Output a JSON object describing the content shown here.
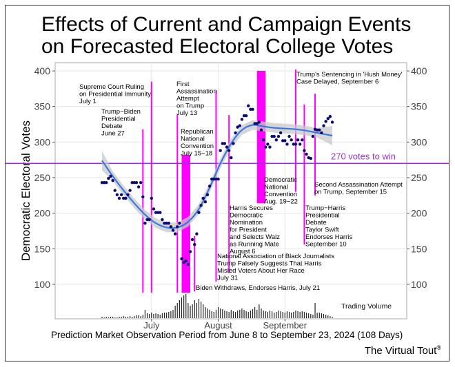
{
  "title_line1": "Effects of Current and Campaign Events",
  "title_line2": "on Forecasted Electoral College Votes",
  "xaxis_caption": "Prediction Market Observation Period from June 8 to September 23, 2024 (108 Days)",
  "brand": "The Virtual Tout",
  "brand_mark": "®",
  "colors": {
    "points": "#0a0a6e",
    "fit": "#3a78e0",
    "ribbon": "#c8c8c8",
    "events": "#ff00ff",
    "threshold": "#9933cc",
    "volume": "#222222"
  },
  "chart_data": {
    "type": "scatter",
    "ylabel": "Democratic Electoral Votes",
    "ylim": [
      75,
      405
    ],
    "yticks": [
      100,
      150,
      200,
      250,
      300,
      350,
      400
    ],
    "x_start": "2024-06-08",
    "x_end": "2024-09-23",
    "xticks": [
      {
        "date": "2024-07-01",
        "label": "July"
      },
      {
        "date": "2024-08-01",
        "label": "August"
      },
      {
        "date": "2024-09-01",
        "label": "September"
      }
    ],
    "threshold": {
      "value": 270,
      "label": "270 votes to win"
    },
    "volume_label": "Trading Volume",
    "points": [
      [
        "2024-06-08",
        243
      ],
      [
        "2024-06-09",
        243
      ],
      [
        "2024-06-10",
        243
      ],
      [
        "2024-06-11",
        249
      ],
      [
        "2024-06-12",
        252
      ],
      [
        "2024-06-13",
        246
      ],
      [
        "2024-06-14",
        232
      ],
      [
        "2024-06-15",
        226
      ],
      [
        "2024-06-16",
        221
      ],
      [
        "2024-06-17",
        226
      ],
      [
        "2024-06-18",
        221
      ],
      [
        "2024-06-19",
        221
      ],
      [
        "2024-06-20",
        226
      ],
      [
        "2024-06-21",
        232
      ],
      [
        "2024-06-22",
        243
      ],
      [
        "2024-06-23",
        243
      ],
      [
        "2024-06-24",
        243
      ],
      [
        "2024-06-25",
        237
      ],
      [
        "2024-06-26",
        243
      ],
      [
        "2024-06-27",
        223
      ],
      [
        "2024-06-28",
        186
      ],
      [
        "2024-06-29",
        191
      ],
      [
        "2024-06-30",
        191
      ],
      [
        "2024-07-01",
        221
      ],
      [
        "2024-07-02",
        206
      ],
      [
        "2024-07-03",
        201
      ],
      [
        "2024-07-04",
        201
      ],
      [
        "2024-07-05",
        201
      ],
      [
        "2024-07-06",
        191
      ],
      [
        "2024-07-07",
        186
      ],
      [
        "2024-07-08",
        186
      ],
      [
        "2024-07-09",
        186
      ],
      [
        "2024-07-10",
        181
      ],
      [
        "2024-07-11",
        176
      ],
      [
        "2024-07-12",
        171
      ],
      [
        "2024-07-13",
        181
      ],
      [
        "2024-07-14",
        186
      ],
      [
        "2024-07-15",
        136
      ],
      [
        "2024-07-16",
        131
      ],
      [
        "2024-07-17",
        133
      ],
      [
        "2024-07-18",
        128
      ],
      [
        "2024-07-19",
        146
      ],
      [
        "2024-07-20",
        163
      ],
      [
        "2024-07-21",
        156
      ],
      [
        "2024-07-22",
        171
      ],
      [
        "2024-07-23",
        201
      ],
      [
        "2024-07-24",
        211
      ],
      [
        "2024-07-25",
        221
      ],
      [
        "2024-07-26",
        216
      ],
      [
        "2024-07-27",
        226
      ],
      [
        "2024-07-28",
        238
      ],
      [
        "2024-07-29",
        248
      ],
      [
        "2024-07-30",
        248
      ],
      [
        "2024-07-31",
        248
      ],
      [
        "2024-08-01",
        248
      ],
      [
        "2024-08-02",
        288
      ],
      [
        "2024-08-03",
        298
      ],
      [
        "2024-08-04",
        298
      ],
      [
        "2024-08-05",
        293
      ],
      [
        "2024-08-06",
        288
      ],
      [
        "2024-08-07",
        278
      ],
      [
        "2024-08-08",
        298
      ],
      [
        "2024-08-09",
        313
      ],
      [
        "2024-08-10",
        321
      ],
      [
        "2024-08-11",
        323
      ],
      [
        "2024-08-12",
        332
      ],
      [
        "2024-08-13",
        337
      ],
      [
        "2024-08-14",
        337
      ],
      [
        "2024-08-15",
        351
      ],
      [
        "2024-08-16",
        346
      ],
      [
        "2024-08-17",
        346
      ],
      [
        "2024-08-18",
        326
      ],
      [
        "2024-08-19",
        326
      ],
      [
        "2024-08-20",
        328
      ],
      [
        "2024-08-21",
        317
      ],
      [
        "2024-08-22",
        303
      ],
      [
        "2024-08-23",
        293
      ],
      [
        "2024-08-24",
        297
      ],
      [
        "2024-08-25",
        293
      ],
      [
        "2024-08-26",
        308
      ],
      [
        "2024-08-27",
        308
      ],
      [
        "2024-08-28",
        303
      ],
      [
        "2024-08-29",
        308
      ],
      [
        "2024-08-30",
        313
      ],
      [
        "2024-08-31",
        302
      ],
      [
        "2024-09-01",
        302
      ],
      [
        "2024-09-02",
        297
      ],
      [
        "2024-09-03",
        308
      ],
      [
        "2024-09-04",
        303
      ],
      [
        "2024-09-05",
        297
      ],
      [
        "2024-09-06",
        297
      ],
      [
        "2024-09-07",
        303
      ],
      [
        "2024-09-08",
        297
      ],
      [
        "2024-09-09",
        303
      ],
      [
        "2024-09-10",
        288
      ],
      [
        "2024-09-11",
        283
      ],
      [
        "2024-09-12",
        278
      ],
      [
        "2024-09-13",
        277
      ],
      [
        "2024-09-14",
        308
      ],
      [
        "2024-09-15",
        318
      ],
      [
        "2024-09-16",
        317
      ],
      [
        "2024-09-17",
        317
      ],
      [
        "2024-09-18",
        313
      ],
      [
        "2024-09-19",
        323
      ],
      [
        "2024-09-20",
        329
      ],
      [
        "2024-09-21",
        333
      ],
      [
        "2024-09-22",
        336
      ],
      [
        "2024-09-23",
        328
      ]
    ],
    "fit": [
      [
        "2024-06-08",
        274
      ],
      [
        "2024-06-13",
        252
      ],
      [
        "2024-06-18",
        232
      ],
      [
        "2024-06-23",
        214
      ],
      [
        "2024-06-28",
        198
      ],
      [
        "2024-07-03",
        186
      ],
      [
        "2024-07-08",
        180
      ],
      [
        "2024-07-13",
        180
      ],
      [
        "2024-07-18",
        188
      ],
      [
        "2024-07-23",
        206
      ],
      [
        "2024-07-28",
        236
      ],
      [
        "2024-08-02",
        270
      ],
      [
        "2024-08-07",
        298
      ],
      [
        "2024-08-12",
        317
      ],
      [
        "2024-08-17",
        324
      ],
      [
        "2024-08-22",
        322
      ],
      [
        "2024-08-27",
        320
      ],
      [
        "2024-09-01",
        319
      ],
      [
        "2024-09-06",
        318
      ],
      [
        "2024-09-11",
        316
      ],
      [
        "2024-09-16",
        313
      ],
      [
        "2024-09-23",
        309
      ]
    ],
    "events": [
      {
        "date": "2024-06-27",
        "label": "Trump-Biden Presidential Debate June 27"
      },
      {
        "date": "2024-07-01",
        "label": "Supreme Court Ruling on Presidential Immunity July 1"
      },
      {
        "date": "2024-07-13",
        "label": "First Assassination Attempt on Trump July 13"
      },
      {
        "date": "2024-07-15",
        "date_end": "2024-07-18",
        "label": "Republican National Convention July 15-18"
      },
      {
        "date": "2024-07-21",
        "label": "Biden Withdraws, Endorses Harris, July 21"
      },
      {
        "date": "2024-07-31",
        "label": "National Association of Black Journalists Trump Falsely Suggests That Harris Misled Voters About Her Race July 31"
      },
      {
        "date": "2024-08-06",
        "label": "Harris Secures Democratic Nomination for President and Selects Walz as Running Mate August 6"
      },
      {
        "date": "2024-08-19",
        "date_end": "2024-08-22",
        "label": "Democratic National Convention Aug. 19-22"
      },
      {
        "date": "2024-09-06",
        "label": "Trump's Sentencing in 'Hush Money' Case Delayed, September 6"
      },
      {
        "date": "2024-09-10",
        "label": "Trump-Harris Presidential Debate Taylor Swift Endorses Harris September 10"
      },
      {
        "date": "2024-09-15",
        "label": "Second Assassination Attempt on Trump, September 15"
      }
    ],
    "volume": [
      2,
      1,
      2,
      1,
      2,
      2,
      1,
      1,
      2,
      2,
      3,
      2,
      2,
      3,
      2,
      3,
      4,
      4,
      3,
      5,
      12,
      7,
      6,
      8,
      6,
      7,
      6,
      5,
      7,
      8,
      8,
      9,
      10,
      12,
      18,
      22,
      26,
      30,
      33,
      35,
      22,
      18,
      20,
      26,
      22,
      28,
      24,
      20,
      16,
      14,
      12,
      10,
      9,
      12,
      16,
      14,
      13,
      11,
      10,
      9,
      12,
      10,
      9,
      11,
      12,
      14,
      12,
      10,
      9,
      11,
      13,
      16,
      12,
      20,
      14,
      11,
      10,
      9,
      11,
      10,
      8,
      9,
      11,
      10,
      9,
      8,
      10,
      9,
      8,
      9,
      11,
      10,
      9,
      10,
      9,
      8,
      7,
      6,
      5,
      22,
      8,
      8,
      7,
      6,
      5,
      4,
      3,
      2
    ]
  },
  "annotations": {
    "scotus": [
      "Supreme Court Ruling",
      "on Presidential Immunity",
      "July 1"
    ],
    "debate1": [
      "Trump−Biden",
      "Presidential",
      "Debate",
      "June 27"
    ],
    "assassination1": [
      "First",
      "Assassination",
      "Attempt",
      "on Trump",
      "July 13"
    ],
    "rnc": [
      "Republican",
      "National",
      "Convention",
      "July 15−18"
    ],
    "biden": [
      "Biden Withdraws, Endorses Harris, July 21"
    ],
    "nabj": [
      "National Association of Black Journalists",
      "Trump Falsely Suggests That Harris",
      "Misled Voters About Her Race",
      "July 31"
    ],
    "harris_nom": [
      "Harris Secures",
      "Democratic",
      "Nomination",
      "for President",
      "and Selects Walz",
      "as Running Mate",
      "August 6"
    ],
    "dnc": [
      "Democratic",
      "National",
      "Convention",
      "Aug. 19−22"
    ],
    "sentencing": [
      "Trump's Sentencing in 'Hush Money'",
      "Case Delayed, September 6"
    ],
    "assassination2": [
      "Second Assassination Attempt",
      "on Trump, September 15"
    ],
    "debate2": [
      "Trump−Harris",
      "Presidential",
      "Debate",
      "Taylor Swift",
      "Endorses Harris",
      "September 10"
    ]
  }
}
